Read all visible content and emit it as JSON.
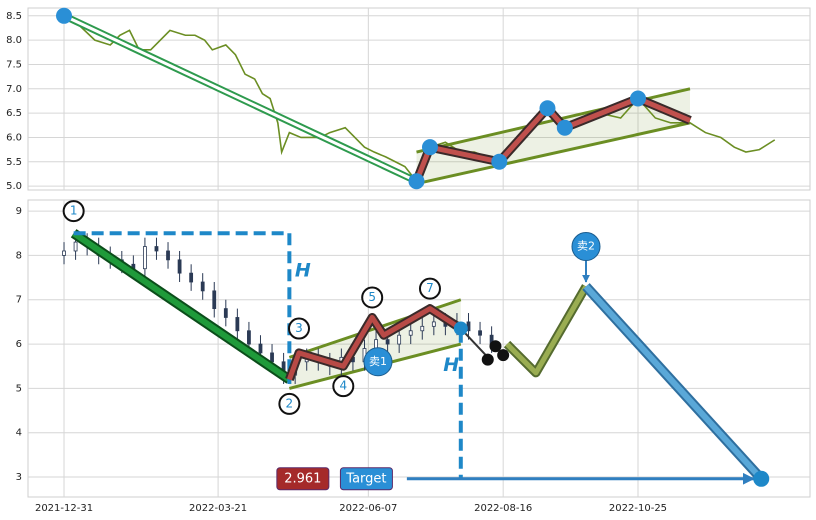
{
  "chart_data": [
    {
      "type": "line",
      "color": "#6b8e23",
      "x": [
        0,
        8,
        16,
        24,
        29,
        34,
        39,
        45,
        55,
        63,
        68,
        73,
        77,
        84,
        89,
        94,
        99,
        103,
        107,
        111,
        113,
        117,
        123,
        128,
        133,
        138,
        146,
        151,
        156,
        161,
        167,
        172,
        177,
        183,
        190,
        198,
        206,
        213,
        226,
        234,
        242,
        251,
        260,
        268,
        278,
        289,
        298,
        307,
        315,
        325,
        333,
        341,
        348,
        354,
        361,
        369
      ],
      "values": [
        8.5,
        8.3,
        8.0,
        7.9,
        8.1,
        8.2,
        7.8,
        7.8,
        8.2,
        8.1,
        8.1,
        8.0,
        7.8,
        7.9,
        7.7,
        7.3,
        7.2,
        6.9,
        6.8,
        6.3,
        5.7,
        6.1,
        6.0,
        6.0,
        6.0,
        6.1,
        6.2,
        6.0,
        5.8,
        5.7,
        5.6,
        5.5,
        5.4,
        5.1,
        5.8,
        5.9,
        5.7,
        5.7,
        5.5,
        5.9,
        6.2,
        6.6,
        6.2,
        6.4,
        6.5,
        6.4,
        6.8,
        6.4,
        6.3,
        6.3,
        6.1,
        6.0,
        5.8,
        5.7,
        5.75,
        5.95
      ],
      "xlim": [
        -18.7,
        387.3
      ],
      "xticks": [
        0,
        80,
        158,
        228,
        298
      ],
      "ylim": [
        4.92,
        8.66
      ],
      "yticks": [
        {
          "value": 5,
          "label": "5.0"
        },
        5.5,
        {
          "value": 6,
          "label": "6.0"
        },
        6.5,
        {
          "value": 7,
          "label": "7.0"
        },
        7.5,
        {
          "value": 8,
          "label": "8.0"
        },
        8.5
      ],
      "grid": true,
      "overlays": {
        "channels": [
          {
            "x": [
              183,
              325
            ],
            "upper": [
              5.7,
              7.0
            ],
            "lower": [
              5.05,
              6.3
            ],
            "color": "#6b8e23"
          }
        ],
        "lines": [
          {
            "x": [
              0,
              183
            ],
            "values": [
              8.5,
              5.1
            ],
            "color": "#ffffff",
            "width": 3,
            "outline": "#2e9a4e"
          },
          {
            "x": [
              183,
              190,
              226,
              251,
              260,
              298,
              325
            ],
            "values": [
              5.1,
              5.8,
              5.5,
              6.6,
              6.2,
              6.8,
              6.35
            ],
            "color": "#c0504d",
            "width": 5,
            "outline": "#3a2a2a"
          }
        ],
        "dots": [
          {
            "x": [
              0,
              183,
              190,
              226,
              251,
              260,
              298
            ],
            "values": [
              8.5,
              5.1,
              5.8,
              5.5,
              6.6,
              6.2,
              6.8
            ],
            "color": "#2a8fd6",
            "r": 8
          }
        ]
      }
    },
    {
      "type": "candlestick",
      "x": [
        0,
        6,
        12,
        18,
        24,
        30,
        36,
        42,
        48,
        54,
        60,
        66,
        72,
        78,
        84,
        90,
        96,
        102,
        108,
        114,
        120,
        126,
        132,
        138,
        144,
        150,
        156,
        162,
        168,
        174,
        180,
        186,
        192,
        198,
        204,
        210,
        216,
        222
      ],
      "open": [
        8.0,
        8.1,
        8.3,
        8.2,
        8.0,
        7.9,
        7.8,
        7.7,
        8.2,
        8.1,
        7.9,
        7.6,
        7.4,
        7.2,
        6.8,
        6.6,
        6.3,
        6.0,
        5.8,
        5.6,
        5.3,
        5.6,
        5.7,
        5.6,
        5.5,
        5.7,
        5.6,
        5.9,
        6.1,
        6.0,
        6.2,
        6.3,
        6.4,
        6.5,
        6.4,
        6.5,
        6.3,
        6.2
      ],
      "close": [
        8.1,
        8.3,
        8.2,
        8.0,
        7.9,
        7.8,
        7.7,
        8.2,
        8.1,
        7.9,
        7.6,
        7.4,
        7.2,
        6.8,
        6.6,
        6.3,
        6.0,
        5.8,
        5.6,
        5.3,
        5.6,
        5.7,
        5.6,
        5.5,
        5.7,
        5.6,
        5.9,
        6.1,
        6.0,
        6.2,
        6.3,
        6.4,
        6.5,
        6.4,
        6.5,
        6.3,
        6.2,
        6.0
      ],
      "high": [
        8.3,
        8.5,
        8.5,
        8.4,
        8.2,
        8.1,
        8.0,
        8.4,
        8.4,
        8.3,
        8.1,
        7.8,
        7.6,
        7.4,
        7.0,
        6.8,
        6.5,
        6.2,
        6.0,
        5.8,
        5.8,
        5.9,
        5.9,
        5.8,
        5.9,
        5.9,
        6.1,
        6.3,
        6.3,
        6.4,
        6.5,
        6.6,
        6.7,
        6.7,
        6.7,
        6.7,
        6.5,
        6.4
      ],
      "low": [
        7.8,
        7.9,
        8.0,
        7.8,
        7.7,
        7.6,
        7.5,
        7.5,
        7.9,
        7.7,
        7.4,
        7.2,
        7.0,
        6.6,
        6.4,
        6.1,
        5.8,
        5.6,
        5.4,
        5.1,
        5.1,
        5.4,
        5.4,
        5.3,
        5.3,
        5.4,
        5.4,
        5.7,
        5.8,
        5.8,
        6.0,
        6.1,
        6.2,
        6.2,
        6.2,
        6.1,
        6.0,
        5.8
      ],
      "color": "#2b3a55",
      "xlim": [
        -18.7,
        387.3
      ],
      "xticks": [
        {
          "value": 0,
          "label": "2021-12-31"
        },
        {
          "value": 80,
          "label": "2022-03-21"
        },
        {
          "value": 158,
          "label": "2022-06-07"
        },
        {
          "value": 228,
          "label": "2022-08-16"
        },
        {
          "value": 298,
          "label": "2022-10-25"
        }
      ],
      "ylim": [
        2.55,
        9.25
      ],
      "yticks": [
        3,
        4,
        5,
        6,
        7,
        8,
        9
      ],
      "grid": true,
      "overlays": {
        "channels": [
          {
            "x": [
              117,
              206
            ],
            "upper": [
              5.7,
              7.0
            ],
            "lower": [
              5.0,
              6.0
            ],
            "color": "#6b8e23"
          }
        ],
        "lines": [
          {
            "x": [
              5,
              117
            ],
            "values": [
              8.5,
              5.2
            ],
            "color": "#1f9a3a",
            "width": 6,
            "outline": "#0b4d1a"
          },
          {
            "x": [
              5,
              117
            ],
            "values": [
              8.5,
              8.5
            ],
            "color": "#1e88c8",
            "width": 4,
            "dash": "12 6"
          },
          {
            "x": [
              117,
              117
            ],
            "values": [
              8.5,
              5.1
            ],
            "color": "#1e88c8",
            "width": 4,
            "dash": "12 6"
          },
          {
            "x": [
              117,
              122,
              145,
              160,
              166,
              190,
              206
            ],
            "values": [
              5.2,
              5.8,
              5.5,
              6.6,
              6.2,
              6.8,
              6.35
            ],
            "color": "#b84a46",
            "width": 5,
            "outline": "#3a2a2a"
          },
          {
            "x": [
              206,
              219
            ],
            "values": [
              6.35,
              5.75
            ],
            "color": "#333333",
            "width": 2
          },
          {
            "x": [
              230,
              245,
              271
            ],
            "values": [
              6.0,
              5.35,
              7.3
            ],
            "color": "#9aad52",
            "width": 5,
            "outline": "#556b2f"
          },
          {
            "x": [
              271,
              362
            ],
            "values": [
              7.3,
              2.961
            ],
            "color": "#5aa8d8",
            "width": 6,
            "outline": "#2f6f9f"
          },
          {
            "x": [
              206,
              206
            ],
            "values": [
              6.3,
              2.961
            ],
            "color": "#1e88c8",
            "width": 4,
            "dash": "12 6"
          },
          {
            "x": [
              178,
              358
            ],
            "values": [
              2.961,
              2.961
            ],
            "color": "#2f7fc0",
            "width": 3,
            "arrow": true
          },
          {
            "x": [
              271,
              271
            ],
            "values": [
              7.95,
              7.4
            ],
            "color": "#2f7fc0",
            "width": 2,
            "arrow": true
          }
        ],
        "dots": [
          {
            "x": [
              206
            ],
            "values": [
              6.35
            ],
            "color": "#1e88c8",
            "r": 7
          },
          {
            "x": [
              220,
              224,
              228
            ],
            "values": [
              5.65,
              5.95,
              5.75
            ],
            "color": "#111111",
            "r": 6
          },
          {
            "x": [
              362
            ],
            "values": [
              2.961
            ],
            "color": "#1e88c8",
            "r": 8
          }
        ],
        "circle_labels": [
          {
            "label": "1",
            "x": 5,
            "y": 9.0
          },
          {
            "label": "2",
            "x": 117,
            "y": 4.65
          },
          {
            "label": "3",
            "x": 122,
            "y": 6.35
          },
          {
            "label": "4",
            "x": 145,
            "y": 5.05
          },
          {
            "label": "5",
            "x": 160,
            "y": 7.05
          },
          {
            "label": "7",
            "x": 190,
            "y": 7.25
          }
        ],
        "signals": [
          {
            "label": "卖1",
            "x": 163,
            "y": 5.6
          },
          {
            "label": "卖2",
            "x": 271,
            "y": 8.2
          }
        ],
        "h_labels": [
          {
            "label": "H",
            "x": 124,
            "y": 7.65
          },
          {
            "label": "H",
            "x": 201,
            "y": 5.52
          }
        ],
        "boxes": [
          {
            "label": "2.961",
            "x": 124,
            "y": 2.961,
            "color": "#a52a2a"
          },
          {
            "label": "Target",
            "x": 157,
            "y": 2.961,
            "color": "#2a8fd6"
          }
        ]
      }
    }
  ]
}
